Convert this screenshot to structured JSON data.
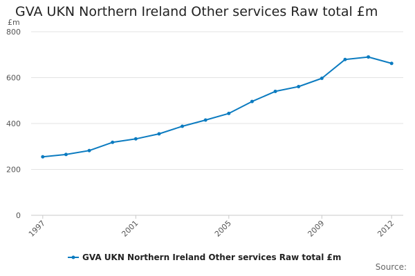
{
  "chart_data": {
    "type": "line",
    "title": "GVA UKN Northern Ireland Other services Raw total £m",
    "ylabel": "£m",
    "xlabel": "",
    "ylim": [
      0,
      800
    ],
    "yticks": [
      "0",
      "200",
      "400",
      "600",
      "800"
    ],
    "xticks": [
      "1997",
      "2001",
      "2005",
      "2009",
      "2012"
    ],
    "grid": true,
    "legend_position": "bottom-center",
    "series": [
      {
        "name": "GVA UKN Northern Ireland Other services Raw total £m",
        "color": "#0b7bc0",
        "x": [
          1997,
          1998,
          1999,
          2000,
          2001,
          2002,
          2003,
          2004,
          2005,
          2006,
          2007,
          2008,
          2009,
          2010,
          2011,
          2012
        ],
        "values": [
          255,
          265,
          282,
          318,
          333,
          355,
          388,
          415,
          444,
          496,
          540,
          561,
          597,
          679,
          690,
          662
        ]
      }
    ],
    "source_label": "Source:"
  }
}
